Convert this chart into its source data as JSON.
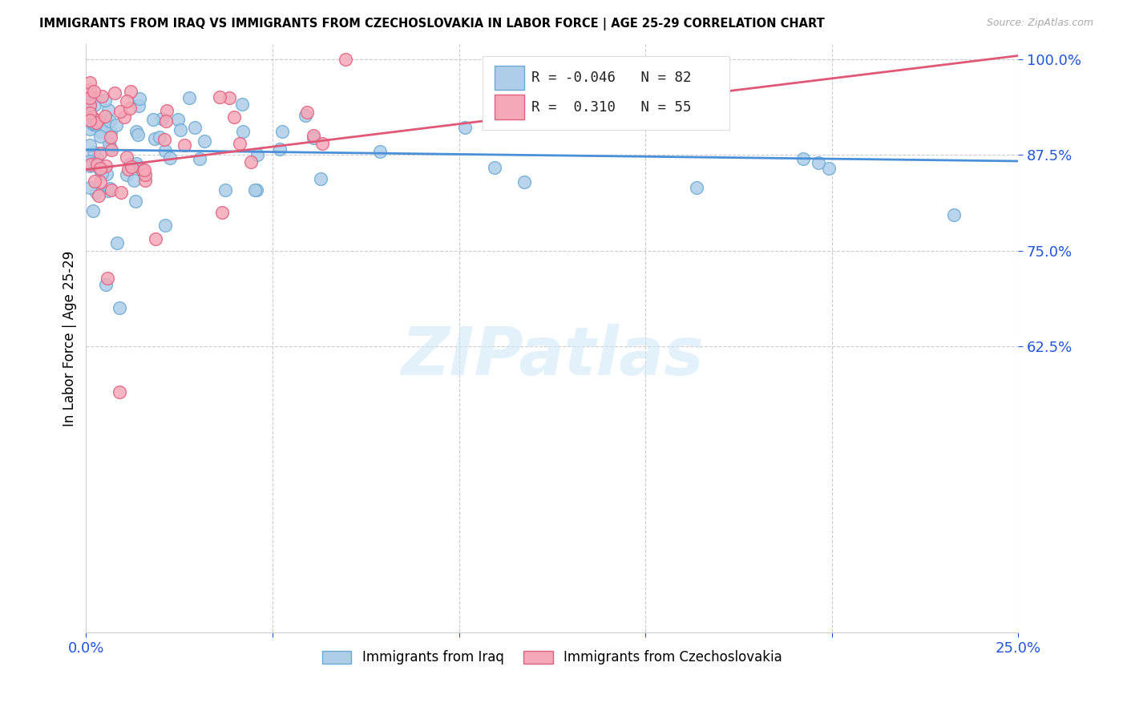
{
  "title": "IMMIGRANTS FROM IRAQ VS IMMIGRANTS FROM CZECHOSLOVAKIA IN LABOR FORCE | AGE 25-29 CORRELATION CHART",
  "source": "Source: ZipAtlas.com",
  "ylabel": "In Labor Force | Age 25-29",
  "xlim": [
    0.0,
    0.25
  ],
  "ylim": [
    0.25,
    1.02
  ],
  "yticks": [
    0.625,
    0.75,
    0.875,
    1.0
  ],
  "ytick_labels": [
    "62.5%",
    "75.0%",
    "87.5%",
    "100.0%"
  ],
  "xticks": [
    0.0,
    0.05,
    0.1,
    0.15,
    0.2,
    0.25
  ],
  "xtick_labels": [
    "0.0%",
    "",
    "",
    "",
    "",
    "25.0%"
  ],
  "color_iraq": "#aecde8",
  "color_iraq_edge": "#6aaad4",
  "color_czech": "#f4a8b8",
  "color_czech_edge": "#e06080",
  "color_iraq_line": "#4a90d9",
  "color_czech_line": "#e05878",
  "R_iraq": -0.046,
  "N_iraq": 82,
  "R_czech": 0.31,
  "N_czech": 55,
  "watermark": "ZIPatlas",
  "iraq_line_x0": 0.0,
  "iraq_line_y0": 0.882,
  "iraq_line_x1": 0.25,
  "iraq_line_y1": 0.867,
  "czech_line_x0": 0.0,
  "czech_line_y0": 0.856,
  "czech_line_x1": 0.25,
  "czech_line_y1": 1.005
}
